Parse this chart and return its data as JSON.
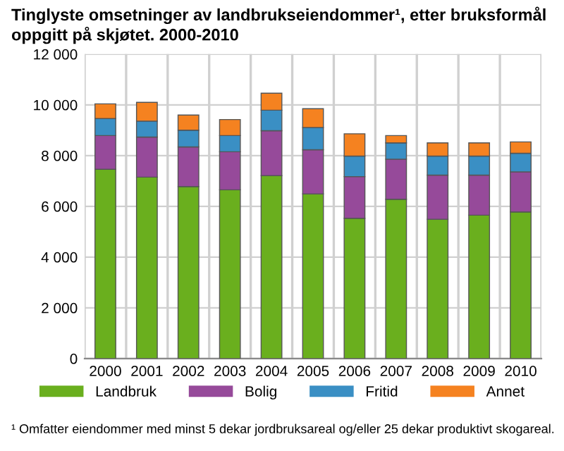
{
  "chart_data": {
    "type": "bar",
    "stacked": true,
    "title": "Tinglyste omsetninger av landbrukseiendommer¹, etter bruksformål oppgitt på skjøtet. 2000-2010",
    "categories": [
      "2000",
      "2001",
      "2002",
      "2003",
      "2004",
      "2005",
      "2006",
      "2007",
      "2008",
      "2009",
      "2010"
    ],
    "series": [
      {
        "name": "Landbruk",
        "color": "#6aaf1e",
        "values": [
          7460,
          7150,
          6780,
          6650,
          7210,
          6490,
          5530,
          6280,
          5490,
          5650,
          5780
        ]
      },
      {
        "name": "Bolig",
        "color": "#964a9a",
        "values": [
          1330,
          1580,
          1560,
          1500,
          1770,
          1740,
          1640,
          1580,
          1740,
          1580,
          1580
        ]
      },
      {
        "name": "Fritid",
        "color": "#3a8fc4",
        "values": [
          670,
          630,
          660,
          640,
          810,
          880,
          810,
          640,
          750,
          750,
          730
        ]
      },
      {
        "name": "Annet",
        "color": "#f58220",
        "values": [
          580,
          740,
          600,
          630,
          670,
          740,
          880,
          290,
          520,
          520,
          450
        ]
      }
    ],
    "ylim": [
      0,
      12000
    ],
    "yticks": [
      {
        "value": 0,
        "label": "0"
      },
      {
        "value": 2000,
        "label": "2 000"
      },
      {
        "value": 4000,
        "label": "4 000"
      },
      {
        "value": 6000,
        "label": "6 000"
      },
      {
        "value": 8000,
        "label": "8 000"
      },
      {
        "value": 10000,
        "label": "10 000"
      },
      {
        "value": 12000,
        "label": "12 000"
      }
    ],
    "grid": true,
    "legend": "bottom",
    "annotations": [
      "¹ Omfatter eiendommer med minst 5 dekar jordbruksareal og/eller 25 dekar produktivt skogareal."
    ]
  }
}
